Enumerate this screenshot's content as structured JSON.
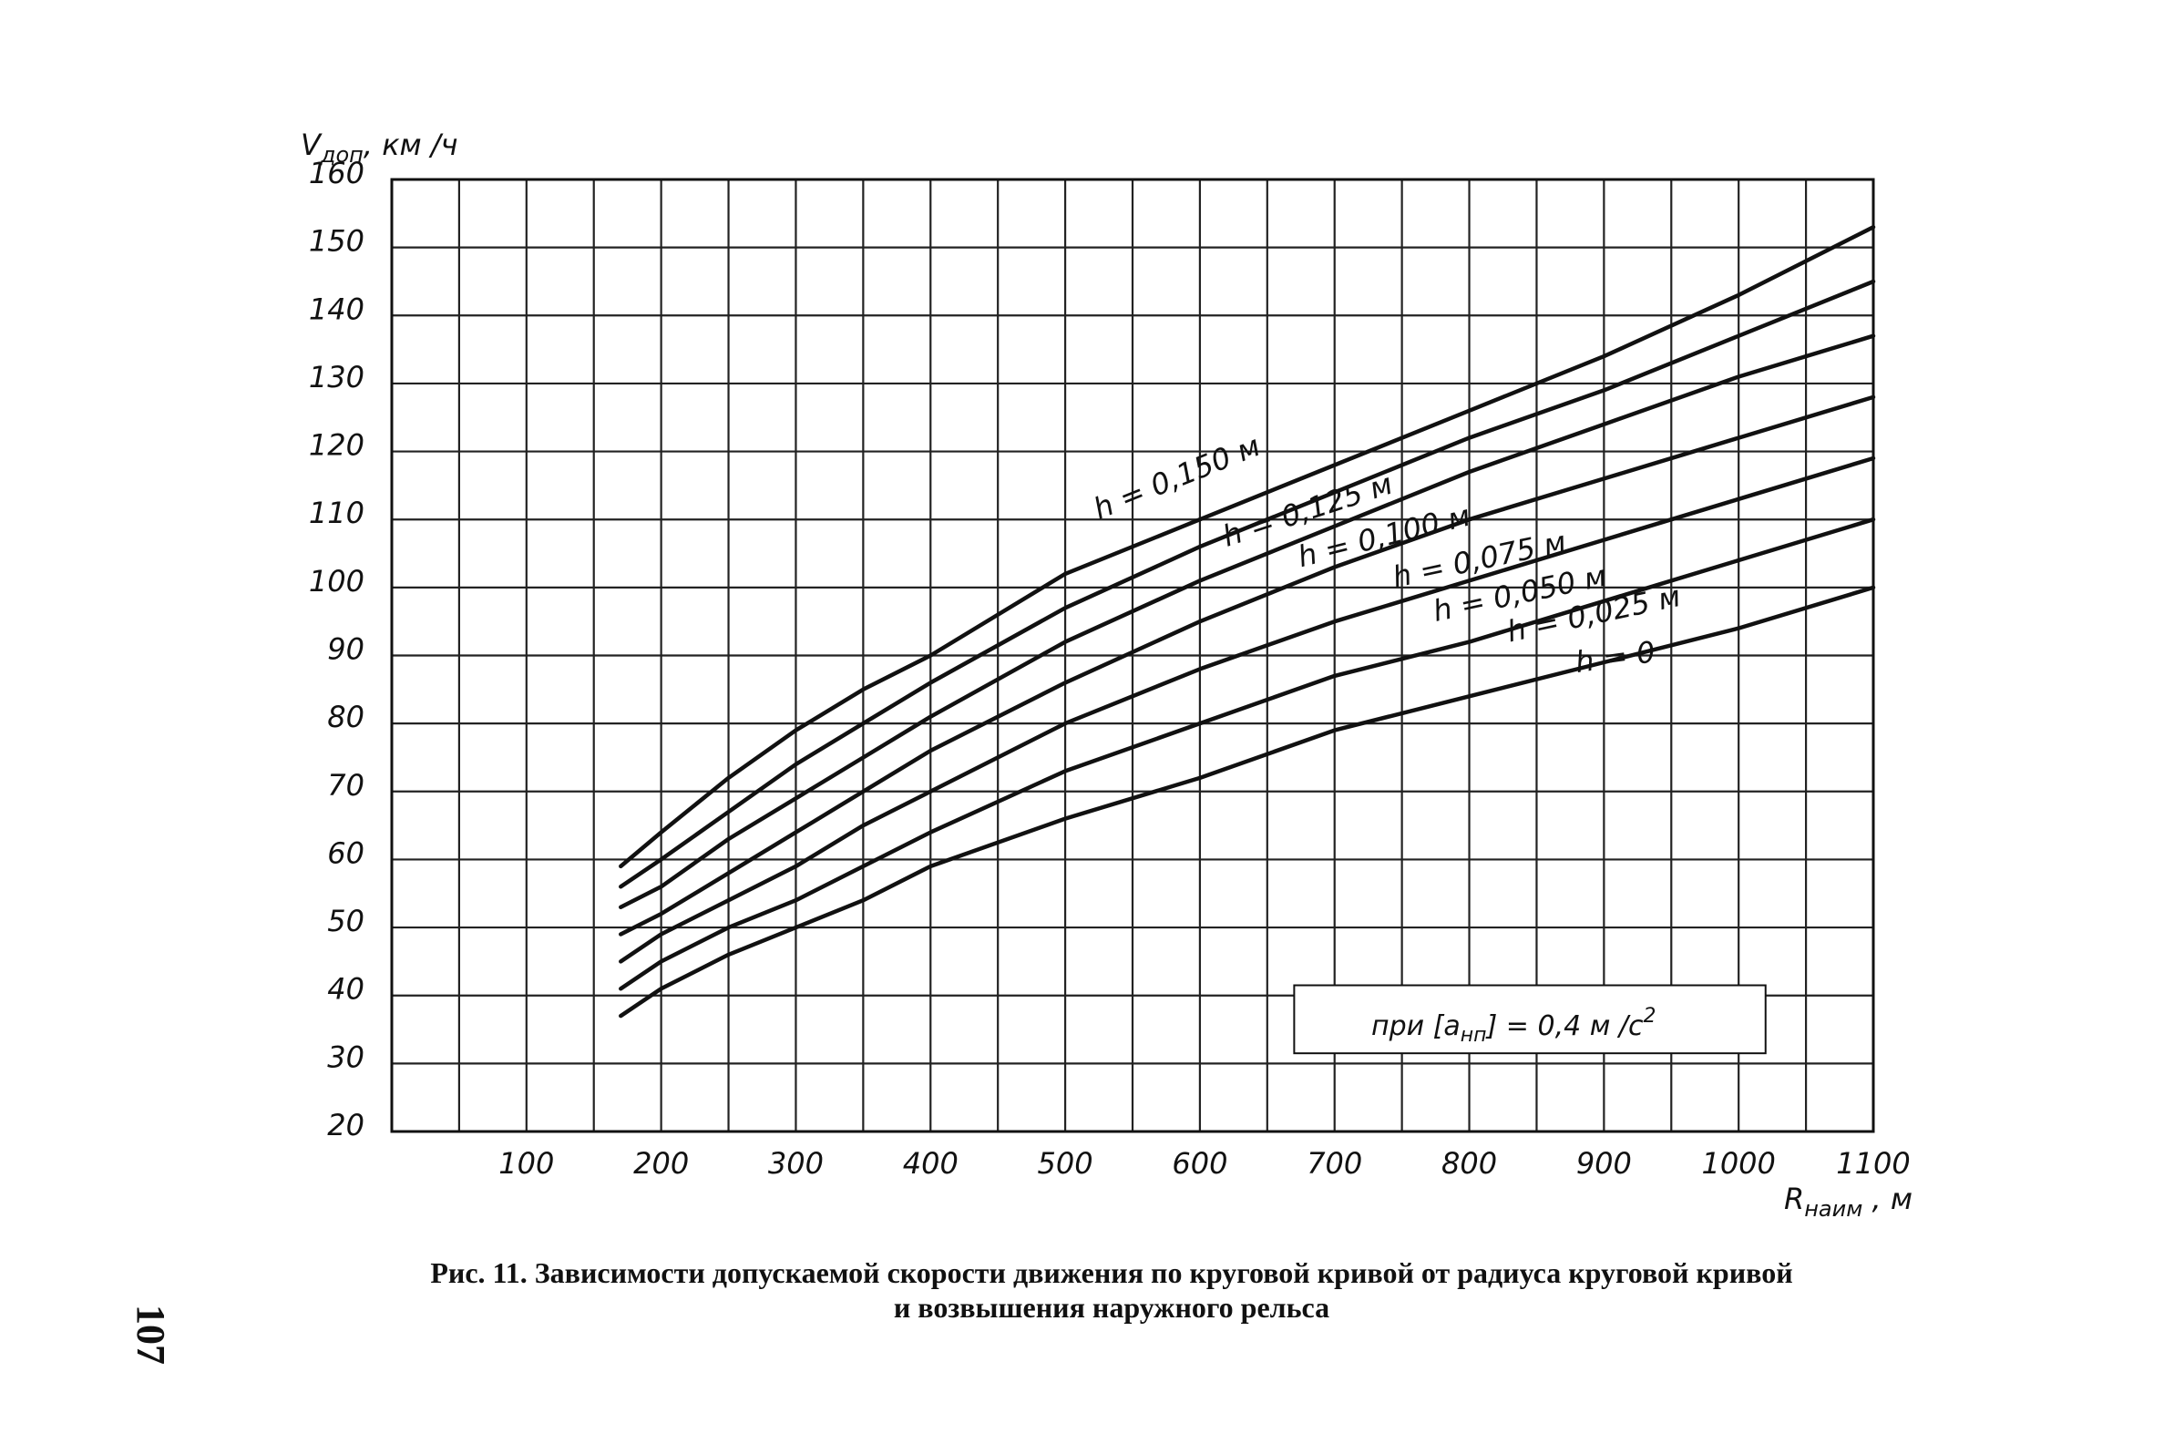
{
  "chart_data": {
    "type": "line",
    "title": "",
    "ylabel": {
      "main": "V",
      "sub": "доп",
      "unit": ", км /ч"
    },
    "xlabel": {
      "main": "R",
      "sub": "наим",
      "unit": " , м"
    },
    "ylim": [
      20,
      160
    ],
    "xlim": [
      0,
      1100
    ],
    "yticks": [
      160,
      150,
      140,
      130,
      120,
      110,
      100,
      90,
      80,
      70,
      60,
      50,
      40,
      30,
      20
    ],
    "xticks": [
      100,
      200,
      300,
      400,
      500,
      600,
      700,
      800,
      900,
      1000,
      1100
    ],
    "grid": true,
    "series": [
      {
        "name": "h = 0,150 м",
        "x": [
          170,
          200,
          250,
          300,
          350,
          400,
          500,
          600,
          700,
          800,
          900,
          1000,
          1100
        ],
        "y": [
          59,
          64,
          72,
          79,
          85,
          90,
          102,
          110,
          118,
          126,
          134,
          143,
          153
        ]
      },
      {
        "name": "h = 0,125 м",
        "x": [
          170,
          200,
          250,
          300,
          350,
          400,
          500,
          600,
          700,
          800,
          900,
          1000,
          1100
        ],
        "y": [
          56,
          60,
          67,
          74,
          80,
          86,
          97,
          106,
          114,
          122,
          129,
          137,
          145
        ]
      },
      {
        "name": "h = 0,100 м",
        "x": [
          170,
          200,
          250,
          300,
          350,
          400,
          500,
          600,
          700,
          800,
          900,
          1000,
          1100
        ],
        "y": [
          53,
          56,
          63,
          69,
          75,
          81,
          92,
          101,
          109,
          117,
          124,
          131,
          137
        ]
      },
      {
        "name": "h = 0,075 м",
        "x": [
          170,
          200,
          250,
          300,
          350,
          400,
          500,
          600,
          700,
          800,
          900,
          1000,
          1100
        ],
        "y": [
          49,
          52,
          58,
          64,
          70,
          76,
          86,
          95,
          103,
          110,
          116,
          122,
          128
        ]
      },
      {
        "name": "h = 0,050 м",
        "x": [
          170,
          200,
          250,
          300,
          350,
          400,
          500,
          600,
          700,
          800,
          900,
          1000,
          1100
        ],
        "y": [
          45,
          49,
          54,
          59,
          65,
          70,
          80,
          88,
          95,
          101,
          107,
          113,
          119
        ]
      },
      {
        "name": "h = 0,025 м",
        "x": [
          170,
          200,
          250,
          300,
          350,
          400,
          500,
          600,
          700,
          800,
          900,
          1000,
          1100
        ],
        "y": [
          41,
          45,
          50,
          54,
          59,
          64,
          73,
          80,
          87,
          92,
          98,
          104,
          110
        ]
      },
      {
        "name": "h = 0",
        "x": [
          170,
          200,
          250,
          300,
          350,
          400,
          500,
          600,
          700,
          800,
          900,
          1000,
          1100
        ],
        "y": [
          37,
          41,
          46,
          50,
          54,
          59,
          66,
          72,
          79,
          84,
          89,
          94,
          100
        ]
      }
    ],
    "note": {
      "prefix": "при [a",
      "sub": "нп",
      "suffix": "] = 0,4 м /с",
      "sup": "2"
    }
  },
  "caption": {
    "line1": "Рис. 11. Зависимости допускаемой скорости движения по круговой кривой от радиуса круговой кривой",
    "line2": "и возвышения наружного рельса"
  },
  "page_number": "107"
}
